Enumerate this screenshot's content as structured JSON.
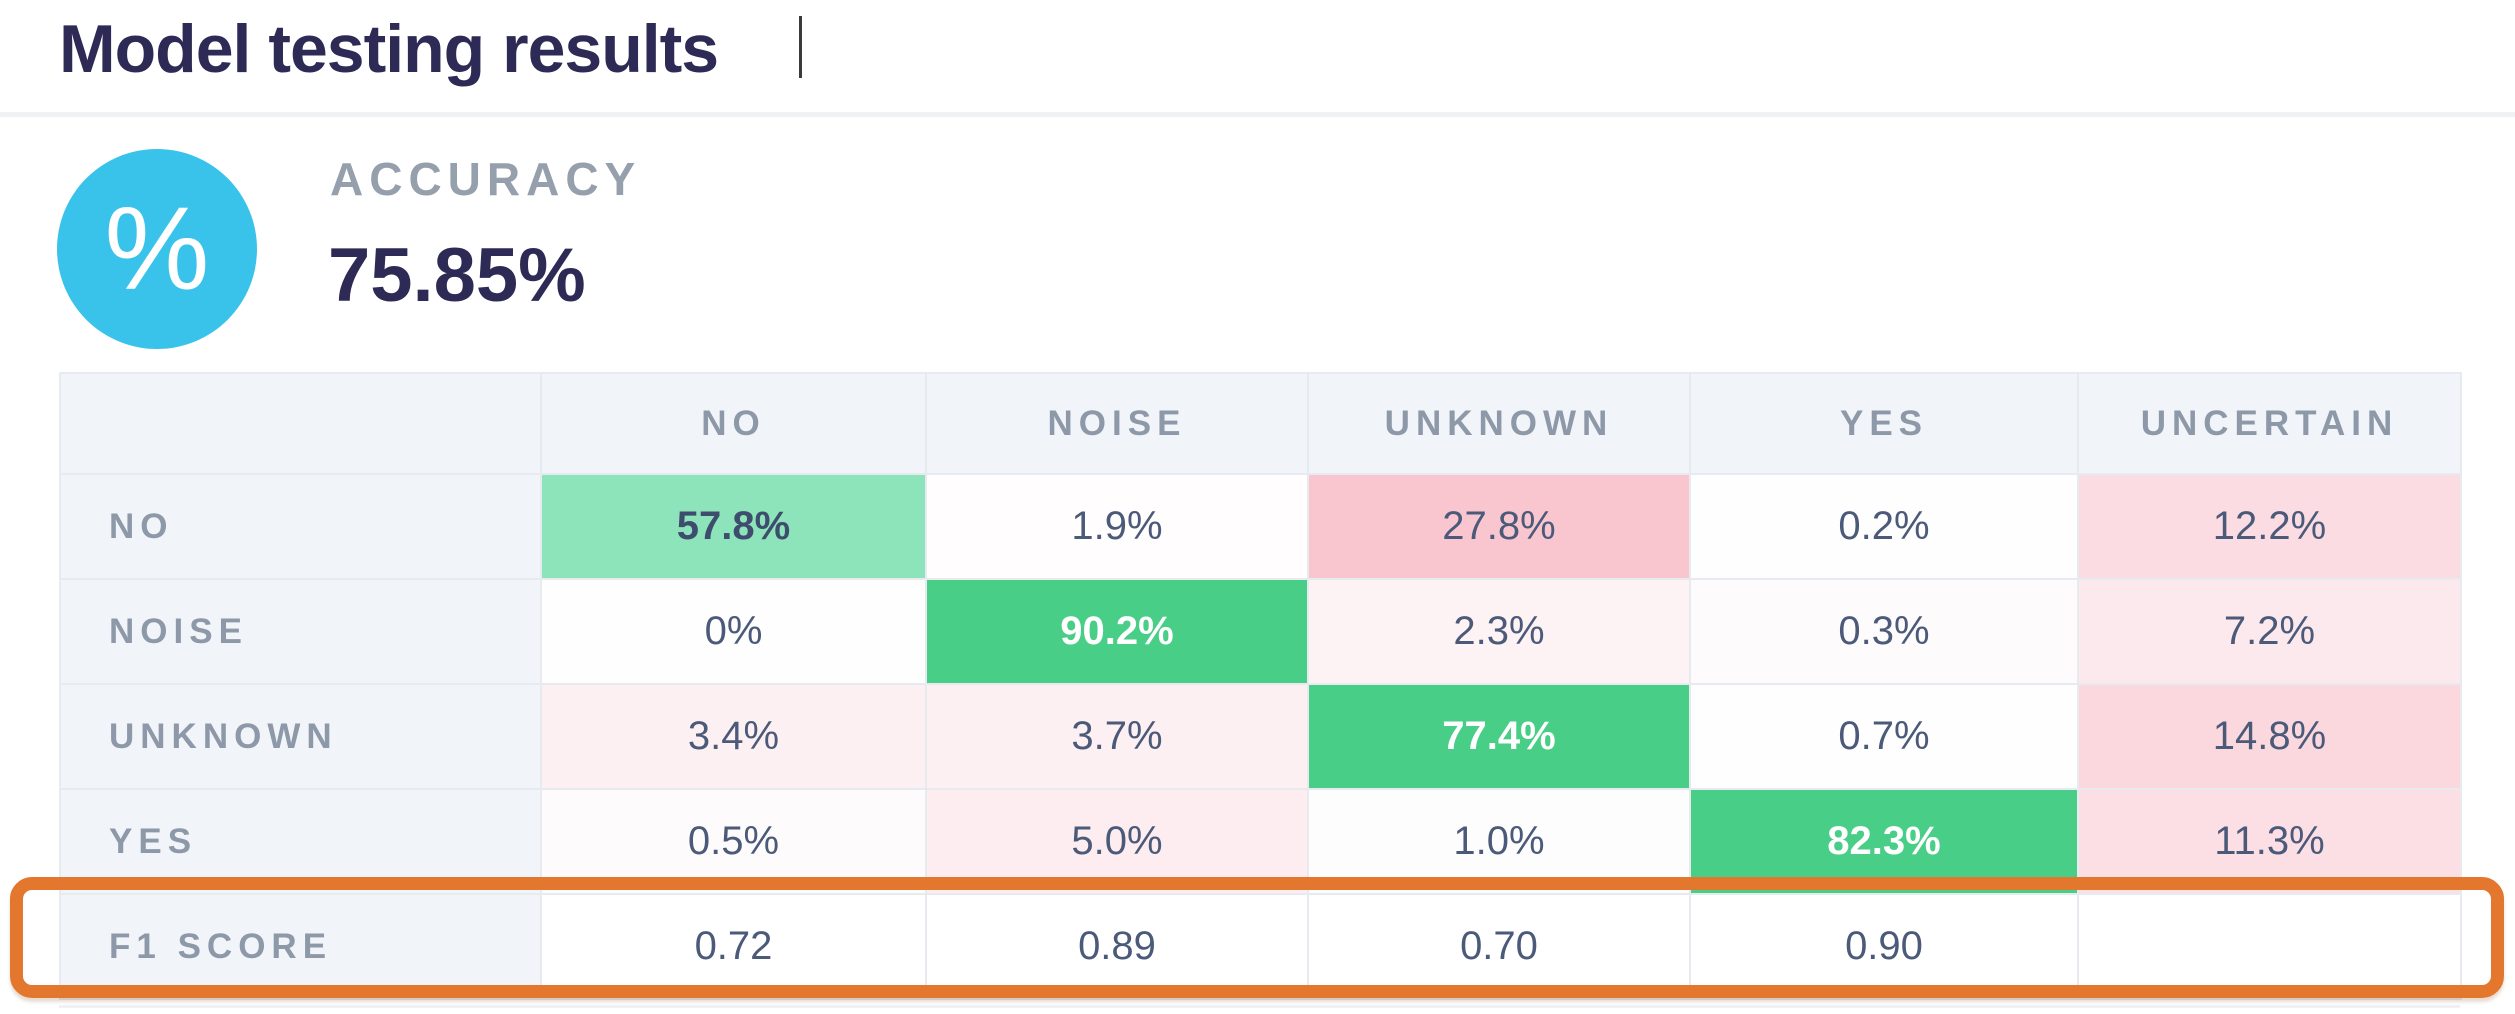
{
  "page": {
    "title": "Model testing results"
  },
  "accuracy": {
    "label": "ACCURACY",
    "value": "75.85%",
    "icon": "percent-icon",
    "icon_glyph": "%",
    "icon_bg": "#3ac3ea"
  },
  "matrix": {
    "columns": [
      "NO",
      "NOISE",
      "UNKNOWN",
      "YES",
      "UNCERTAIN"
    ],
    "rows": [
      {
        "label": "NO",
        "cells": [
          {
            "text": "57.8%",
            "bg": "#8de4bb",
            "bold": true,
            "white": false
          },
          {
            "text": "1.9%",
            "bg": "#fffdfd",
            "bold": false,
            "white": false
          },
          {
            "text": "27.8%",
            "bg": "#f9c6d0",
            "bold": false,
            "white": false
          },
          {
            "text": "0.2%",
            "bg": "#fefefe",
            "bold": false,
            "white": false
          },
          {
            "text": "12.2%",
            "bg": "#fbdce2",
            "bold": false,
            "white": false
          }
        ]
      },
      {
        "label": "NOISE",
        "cells": [
          {
            "text": "0%",
            "bg": "#fefefe",
            "bold": false,
            "white": false
          },
          {
            "text": "90.2%",
            "bg": "#48ce86",
            "bold": true,
            "white": true
          },
          {
            "text": "2.3%",
            "bg": "#fdf2f4",
            "bold": false,
            "white": false
          },
          {
            "text": "0.3%",
            "bg": "#fefbfc",
            "bold": false,
            "white": false
          },
          {
            "text": "7.2%",
            "bg": "#fbe9ed",
            "bold": false,
            "white": false
          }
        ]
      },
      {
        "label": "UNKNOWN",
        "cells": [
          {
            "text": "3.4%",
            "bg": "#fdf0f2",
            "bold": false,
            "white": false
          },
          {
            "text": "3.7%",
            "bg": "#fdf0f2",
            "bold": false,
            "white": false
          },
          {
            "text": "77.4%",
            "bg": "#48ce86",
            "bold": true,
            "white": true
          },
          {
            "text": "0.7%",
            "bg": "#fefefe",
            "bold": false,
            "white": false
          },
          {
            "text": "14.8%",
            "bg": "#fad8de",
            "bold": false,
            "white": false
          }
        ]
      },
      {
        "label": "YES",
        "cells": [
          {
            "text": "0.5%",
            "bg": "#fefbfc",
            "bold": false,
            "white": false
          },
          {
            "text": "5.0%",
            "bg": "#fdedf0",
            "bold": false,
            "white": false
          },
          {
            "text": "1.0%",
            "bg": "#fefdfe",
            "bold": false,
            "white": false
          },
          {
            "text": "82.3%",
            "bg": "#48ce86",
            "bold": true,
            "white": true
          },
          {
            "text": "11.3%",
            "bg": "#fbdfe5",
            "bold": false,
            "white": false
          }
        ]
      },
      {
        "label": "F1 SCORE",
        "cells": [
          {
            "text": "0.72",
            "bg": "#ffffff",
            "bold": false,
            "white": false
          },
          {
            "text": "0.89",
            "bg": "#ffffff",
            "bold": false,
            "white": false
          },
          {
            "text": "0.70",
            "bg": "#ffffff",
            "bold": false,
            "white": false
          },
          {
            "text": "0.90",
            "bg": "#ffffff",
            "bold": false,
            "white": false
          },
          {
            "text": "",
            "bg": "#ffffff",
            "bold": false,
            "white": false
          }
        ]
      }
    ]
  },
  "highlight": {
    "target_row": "F1 SCORE",
    "color": "#e3772d"
  },
  "colors": {
    "title_text": "#2e2a56",
    "muted_text": "#8d98a8",
    "value_text": "#4c5a7a",
    "header_bg": "#f1f5f9",
    "diag_strong_green": "#48ce86",
    "diag_medium_green": "#8de4bb",
    "confusion_pink": "#f9c6d0",
    "icon_cyan": "#3ac3ea",
    "highlight_orange": "#e3772d"
  }
}
